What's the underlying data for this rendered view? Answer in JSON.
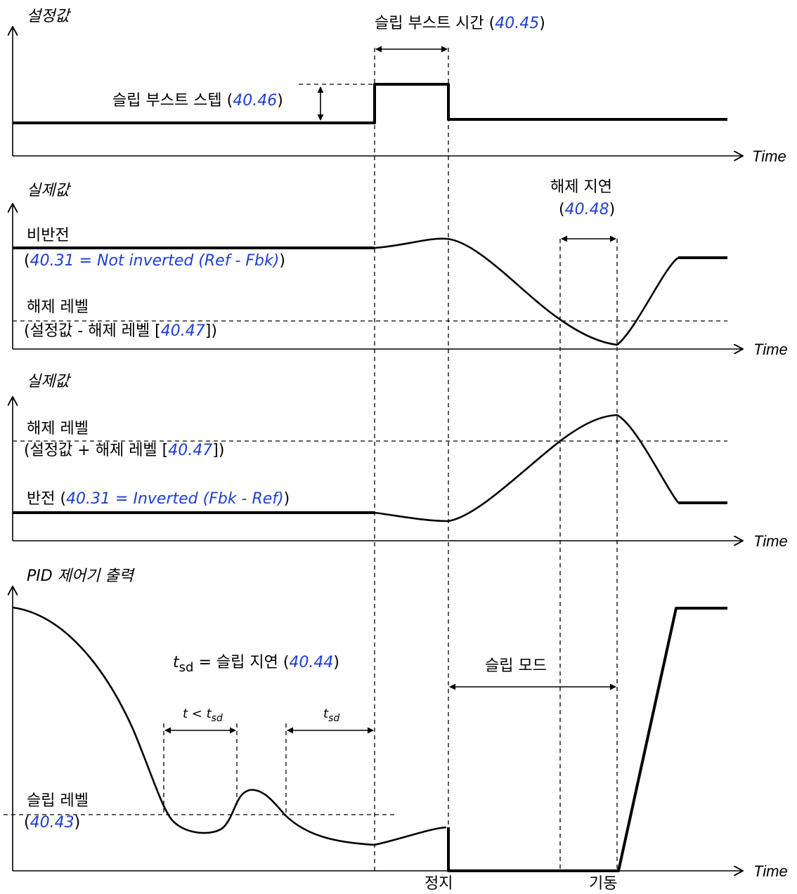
{
  "axis_label": "Time",
  "panel1": {
    "title": "설정값",
    "boost_time": {
      "text": "슬립 부스트 시간 (",
      "param": "40.45",
      "close": ")"
    },
    "boost_step": {
      "text": "슬립 부스트 스텝 (",
      "param": "40.46",
      "close": ")"
    }
  },
  "panel2": {
    "title": "실제값",
    "wake_delay": {
      "text": "해제 지연",
      "param_open": "(",
      "param": "40.48",
      "close": ")"
    },
    "non_inverted": {
      "label": "비반전",
      "open": "(",
      "param": "40.31 = Not inverted (Ref - Fbk)",
      "close": ")"
    },
    "wake_level": {
      "label": "해제 레벨",
      "formula": "(설정값 - 해제 레벨 [",
      "param": "40.47",
      "close": "])"
    }
  },
  "panel3": {
    "title": "실제값",
    "wake_level": {
      "label": "해제 레벨",
      "formula": "(설정값 + 해제 레벨 [",
      "param": "40.47",
      "close": "])"
    },
    "inverted": {
      "label": "반전 (",
      "param": "40.31 = Inverted (Fbk - Ref)",
      "close": ")"
    }
  },
  "panel4": {
    "title": "PID 제어기 출력",
    "sleep_delay": {
      "t": "t",
      "sub": "sd",
      "text": " = 슬립 지연 (",
      "param": "40.44",
      "close": ")"
    },
    "t_less": {
      "t": "t < t",
      "sub": "sd"
    },
    "t_sd": {
      "t": "t",
      "sub": "sd"
    },
    "sleep_mode": "슬립 모드",
    "sleep_level": {
      "label": "슬립 레벨",
      "open": "(",
      "param": "40.43",
      "close": ")"
    },
    "stop": "정지",
    "start": "기동"
  }
}
